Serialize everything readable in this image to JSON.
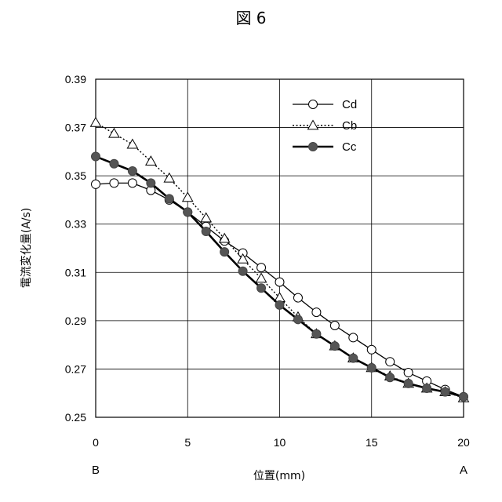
{
  "chart_data": {
    "type": "line",
    "title": "図 6",
    "xlabel": "位置(mm)",
    "ylabel": "電流変化量(A/s)",
    "xlim": [
      0,
      20
    ],
    "ylim": [
      0.25,
      0.39
    ],
    "x_ticks": [
      0,
      5,
      10,
      15,
      20
    ],
    "y_ticks": [
      0.25,
      0.27,
      0.29,
      0.31,
      0.33,
      0.35,
      0.37,
      0.39
    ],
    "x_tick_labels": [
      "0",
      "5",
      "10",
      "15",
      "20"
    ],
    "y_tick_labels": [
      "0.25",
      "0.27",
      "0.29",
      "0.31",
      "0.33",
      "0.35",
      "0.37",
      "0.39"
    ],
    "x_end_labels": {
      "left": "B",
      "right": "A"
    },
    "grid": true,
    "legend_position": "top-right",
    "x": [
      0,
      1,
      2,
      3,
      4,
      5,
      6,
      7,
      8,
      9,
      10,
      11,
      12,
      13,
      14,
      15,
      16,
      17,
      18,
      19,
      20
    ],
    "series": [
      {
        "name": "Cd",
        "marker": "circle-open",
        "line": "solid-thin",
        "values": [
          0.3465,
          0.347,
          0.347,
          0.344,
          0.34,
          0.335,
          0.329,
          0.323,
          0.318,
          0.312,
          0.306,
          0.2995,
          0.2935,
          0.288,
          0.283,
          0.278,
          0.273,
          0.2685,
          0.265,
          0.2615,
          0.2585
        ]
      },
      {
        "name": "Cb",
        "marker": "triangle-open",
        "line": "dotted",
        "values": [
          0.372,
          0.3675,
          0.363,
          0.356,
          0.349,
          0.341,
          0.3325,
          0.324,
          0.3155,
          0.3075,
          0.2995,
          0.2915,
          0.2845,
          0.2795,
          0.2745,
          0.2705,
          0.267,
          0.264,
          0.262,
          0.2605,
          0.258
        ]
      },
      {
        "name": "Cc",
        "marker": "circle-filled",
        "line": "solid-thick",
        "values": [
          0.358,
          0.355,
          0.352,
          0.347,
          0.3405,
          0.335,
          0.327,
          0.3185,
          0.3105,
          0.3035,
          0.2965,
          0.2905,
          0.2845,
          0.2795,
          0.2745,
          0.2705,
          0.2665,
          0.264,
          0.262,
          0.2605,
          0.2585
        ]
      }
    ]
  }
}
